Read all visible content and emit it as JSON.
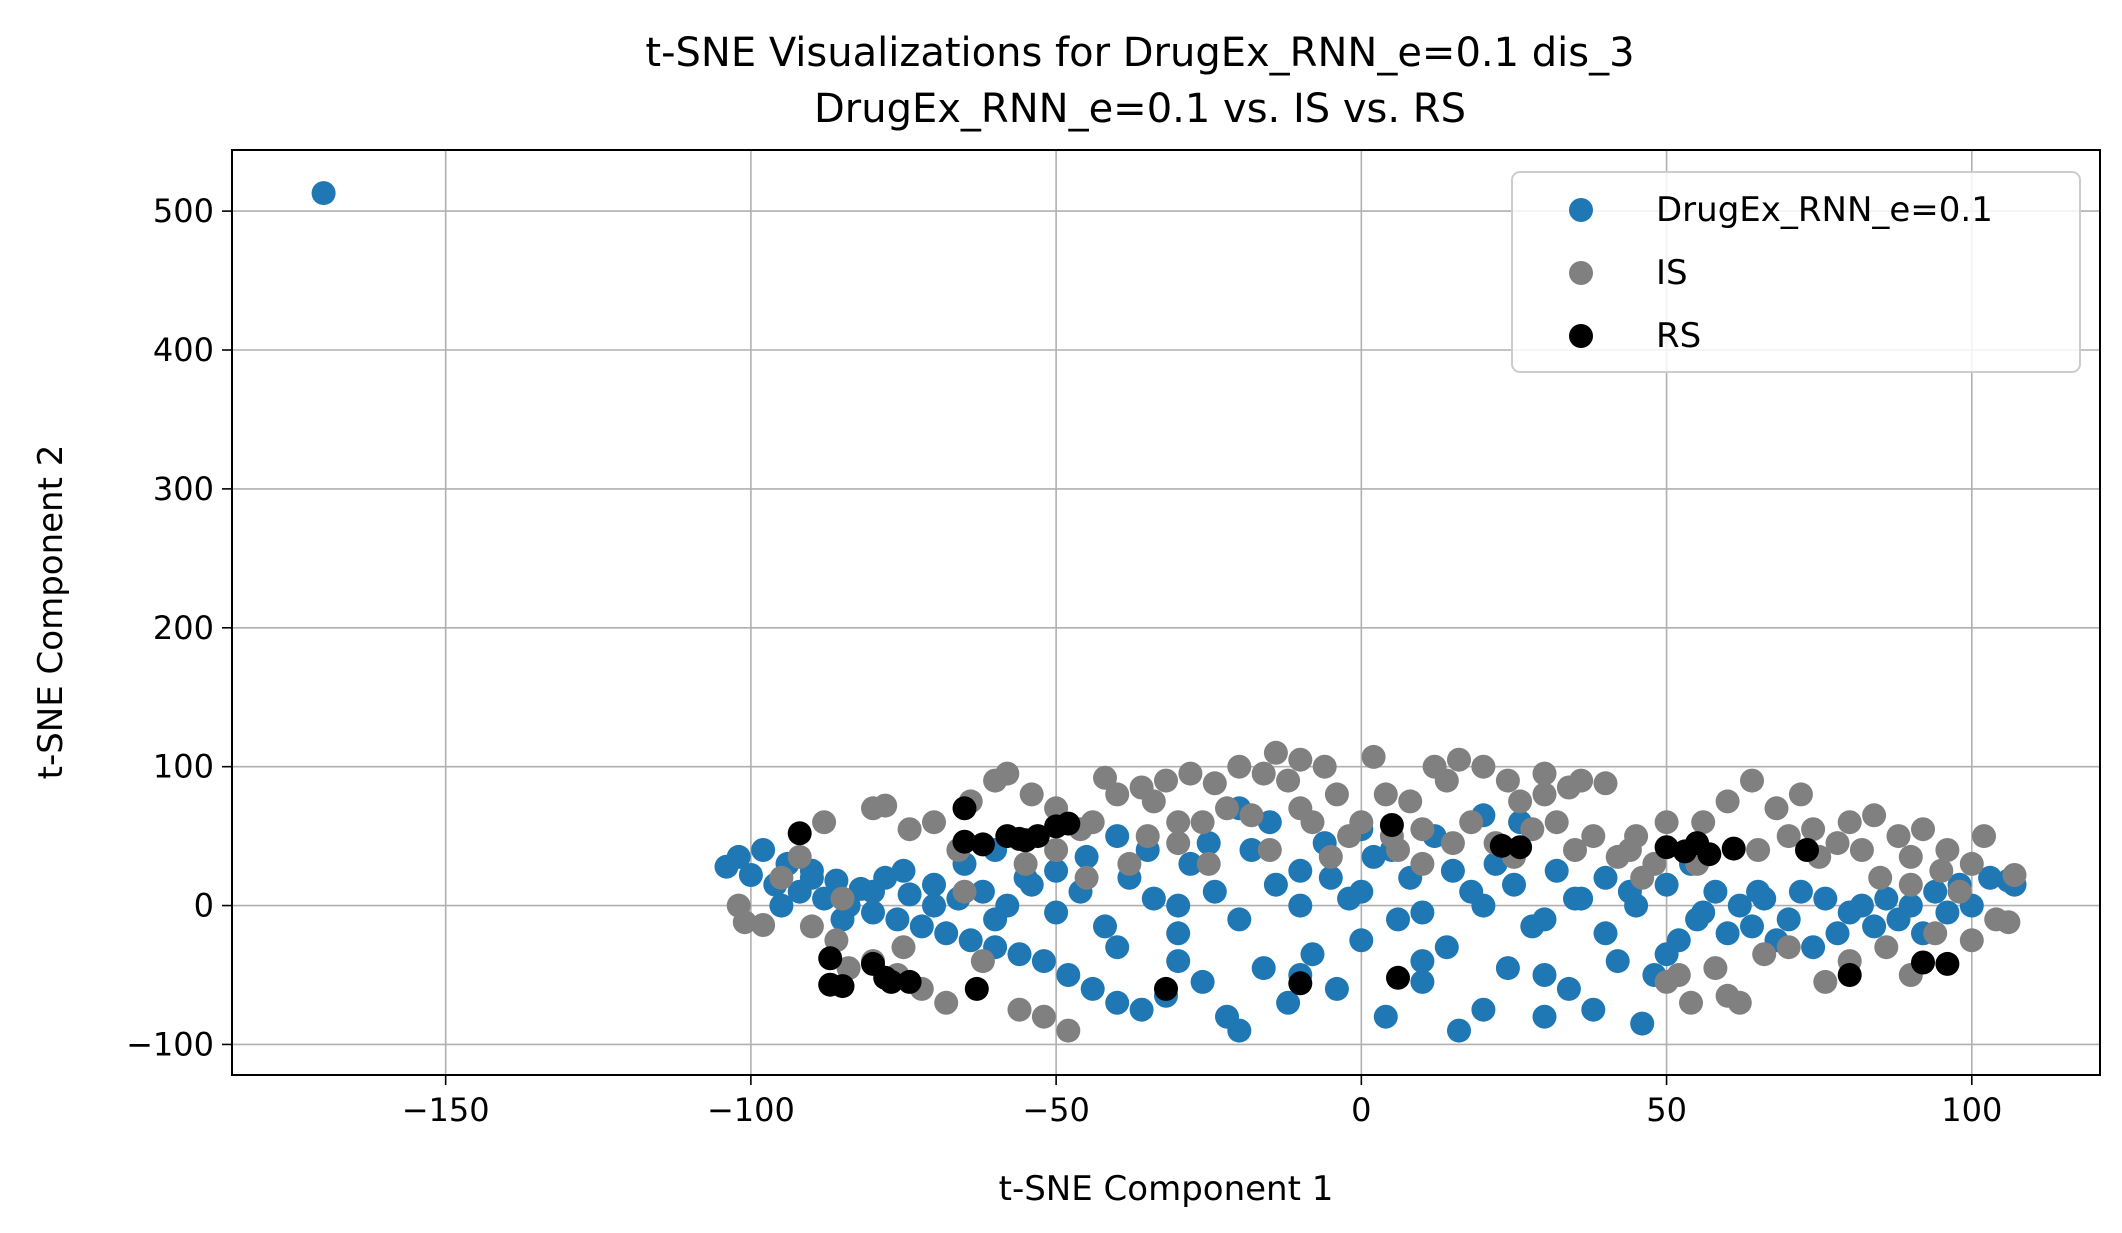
{
  "chart_data": {
    "type": "scatter",
    "title": "t-SNE Visualizations for DrugEx_RNN_e=0.1 dis_3",
    "subtitle": "DrugEx_RNN_e=0.1 vs. IS vs. RS",
    "xlabel": "t-SNE Component 1",
    "ylabel": "t-SNE Component 2",
    "xlim": [
      -185,
      121
    ],
    "ylim": [
      -122,
      544
    ],
    "xticks": [
      -150,
      -100,
      -50,
      0,
      50,
      100
    ],
    "yticks": [
      -100,
      0,
      100,
      200,
      300,
      400,
      500
    ],
    "xtick_labels": [
      "−150",
      "−100",
      "−50",
      "0",
      "50",
      "100"
    ],
    "ytick_labels": [
      "−100",
      "0",
      "100",
      "200",
      "300",
      "400",
      "500"
    ],
    "grid": true,
    "legend_position": "top-right",
    "series": [
      {
        "name": "DrugEx_RNN_e=0.1",
        "color": "#1f77b4",
        "points": [
          [
            -170,
            513
          ],
          [
            -104,
            28
          ],
          [
            -102,
            35
          ],
          [
            -100,
            22
          ],
          [
            -98,
            40
          ],
          [
            -96,
            15
          ],
          [
            -94,
            30
          ],
          [
            -92,
            10
          ],
          [
            -90,
            25
          ],
          [
            -88,
            5
          ],
          [
            -86,
            18
          ],
          [
            -84,
            0
          ],
          [
            -82,
            12
          ],
          [
            -80,
            -5
          ],
          [
            -78,
            20
          ],
          [
            -76,
            -10
          ],
          [
            -74,
            8
          ],
          [
            -72,
            -15
          ],
          [
            -70,
            15
          ],
          [
            -68,
            -20
          ],
          [
            -66,
            5
          ],
          [
            -64,
            -25
          ],
          [
            -62,
            10
          ],
          [
            -60,
            -30
          ],
          [
            -58,
            0
          ],
          [
            -56,
            -35
          ],
          [
            -54,
            15
          ],
          [
            -52,
            -40
          ],
          [
            -50,
            -5
          ],
          [
            -48,
            -50
          ],
          [
            -46,
            10
          ],
          [
            -44,
            -60
          ],
          [
            -42,
            -15
          ],
          [
            -40,
            -70
          ],
          [
            -38,
            20
          ],
          [
            -36,
            -75
          ],
          [
            -34,
            5
          ],
          [
            -32,
            -65
          ],
          [
            -30,
            -20
          ],
          [
            -28,
            30
          ],
          [
            -26,
            -55
          ],
          [
            -24,
            10
          ],
          [
            -22,
            -80
          ],
          [
            -20,
            -90
          ],
          [
            -18,
            40
          ],
          [
            -16,
            -45
          ],
          [
            -14,
            15
          ],
          [
            -12,
            -70
          ],
          [
            -10,
            25
          ],
          [
            -8,
            -35
          ],
          [
            -6,
            45
          ],
          [
            -4,
            -60
          ],
          [
            -2,
            5
          ],
          [
            0,
            -25
          ],
          [
            2,
            35
          ],
          [
            4,
            -80
          ],
          [
            6,
            -10
          ],
          [
            8,
            20
          ],
          [
            10,
            -55
          ],
          [
            12,
            50
          ],
          [
            14,
            -30
          ],
          [
            16,
            -90
          ],
          [
            18,
            10
          ],
          [
            20,
            -75
          ],
          [
            22,
            30
          ],
          [
            24,
            -45
          ],
          [
            26,
            60
          ],
          [
            28,
            -15
          ],
          [
            30,
            -80
          ],
          [
            32,
            25
          ],
          [
            34,
            -60
          ],
          [
            36,
            5
          ],
          [
            38,
            -75
          ],
          [
            40,
            20
          ],
          [
            42,
            -40
          ],
          [
            44,
            10
          ],
          [
            46,
            -85
          ],
          [
            48,
            -50
          ],
          [
            50,
            15
          ],
          [
            52,
            -25
          ],
          [
            54,
            30
          ],
          [
            56,
            -5
          ],
          [
            58,
            10
          ],
          [
            60,
            -20
          ],
          [
            62,
            0
          ],
          [
            64,
            -15
          ],
          [
            66,
            5
          ],
          [
            68,
            -25
          ],
          [
            70,
            -10
          ],
          [
            72,
            10
          ],
          [
            74,
            -30
          ],
          [
            76,
            5
          ],
          [
            78,
            -20
          ],
          [
            80,
            -5
          ],
          [
            82,
            0
          ],
          [
            84,
            -15
          ],
          [
            86,
            5
          ],
          [
            88,
            -10
          ],
          [
            90,
            0
          ],
          [
            92,
            -20
          ],
          [
            94,
            10
          ],
          [
            96,
            -5
          ],
          [
            98,
            15
          ],
          [
            100,
            0
          ],
          [
            103,
            20
          ],
          [
            106,
            18
          ],
          [
            107,
            15
          ],
          [
            -95,
            0
          ],
          [
            -85,
            -10
          ],
          [
            -75,
            25
          ],
          [
            -65,
            30
          ],
          [
            -55,
            20
          ],
          [
            -45,
            35
          ],
          [
            -35,
            40
          ],
          [
            -25,
            45
          ],
          [
            -15,
            60
          ],
          [
            -5,
            20
          ],
          [
            5,
            40
          ],
          [
            15,
            25
          ],
          [
            25,
            15
          ],
          [
            35,
            5
          ],
          [
            45,
            0
          ],
          [
            55,
            -10
          ],
          [
            65,
            10
          ],
          [
            -90,
            20
          ],
          [
            -80,
            10
          ],
          [
            -70,
            0
          ],
          [
            -60,
            -10
          ],
          [
            -50,
            25
          ],
          [
            -40,
            -30
          ],
          [
            -30,
            0
          ],
          [
            -20,
            -10
          ],
          [
            -10,
            0
          ],
          [
            0,
            10
          ],
          [
            10,
            -5
          ],
          [
            20,
            0
          ],
          [
            30,
            -10
          ],
          [
            40,
            -20
          ],
          [
            -60,
            40
          ],
          [
            -40,
            50
          ],
          [
            -20,
            70
          ],
          [
            0,
            55
          ],
          [
            20,
            65
          ],
          [
            -30,
            -40
          ],
          [
            -10,
            -50
          ],
          [
            10,
            -40
          ],
          [
            30,
            -50
          ],
          [
            50,
            -35
          ]
        ]
      },
      {
        "name": "IS",
        "color": "#808080",
        "points": [
          [
            -102,
            0
          ],
          [
            -101,
            -12
          ],
          [
            -98,
            -14
          ],
          [
            -95,
            20
          ],
          [
            -92,
            35
          ],
          [
            -90,
            -15
          ],
          [
            -88,
            60
          ],
          [
            -86,
            -25
          ],
          [
            -84,
            -45
          ],
          [
            -80,
            70
          ],
          [
            -78,
            72
          ],
          [
            -76,
            -50
          ],
          [
            -74,
            55
          ],
          [
            -72,
            -60
          ],
          [
            -70,
            60
          ],
          [
            -68,
            -70
          ],
          [
            -66,
            40
          ],
          [
            -64,
            75
          ],
          [
            -62,
            -40
          ],
          [
            -60,
            90
          ],
          [
            -58,
            95
          ],
          [
            -56,
            -75
          ],
          [
            -54,
            80
          ],
          [
            -52,
            -80
          ],
          [
            -50,
            70
          ],
          [
            -48,
            -90
          ],
          [
            -46,
            55
          ],
          [
            -44,
            60
          ],
          [
            -42,
            92
          ],
          [
            -40,
            80
          ],
          [
            -38,
            30
          ],
          [
            -36,
            85
          ],
          [
            -34,
            75
          ],
          [
            -32,
            90
          ],
          [
            -30,
            45
          ],
          [
            -28,
            95
          ],
          [
            -26,
            60
          ],
          [
            -24,
            88
          ],
          [
            -22,
            70
          ],
          [
            -20,
            100
          ],
          [
            -18,
            65
          ],
          [
            -16,
            95
          ],
          [
            -14,
            110
          ],
          [
            -12,
            90
          ],
          [
            -10,
            105
          ],
          [
            -8,
            60
          ],
          [
            -6,
            100
          ],
          [
            -4,
            80
          ],
          [
            -2,
            50
          ],
          [
            0,
            60
          ],
          [
            2,
            107
          ],
          [
            4,
            80
          ],
          [
            6,
            40
          ],
          [
            8,
            75
          ],
          [
            10,
            55
          ],
          [
            12,
            100
          ],
          [
            14,
            90
          ],
          [
            16,
            105
          ],
          [
            18,
            60
          ],
          [
            20,
            100
          ],
          [
            22,
            45
          ],
          [
            24,
            90
          ],
          [
            26,
            75
          ],
          [
            28,
            55
          ],
          [
            30,
            95
          ],
          [
            32,
            60
          ],
          [
            34,
            85
          ],
          [
            36,
            90
          ],
          [
            38,
            50
          ],
          [
            40,
            88
          ],
          [
            42,
            35
          ],
          [
            44,
            40
          ],
          [
            46,
            20
          ],
          [
            48,
            30
          ],
          [
            50,
            -55
          ],
          [
            52,
            -50
          ],
          [
            54,
            -70
          ],
          [
            56,
            60
          ],
          [
            58,
            -45
          ],
          [
            60,
            75
          ],
          [
            62,
            -70
          ],
          [
            64,
            90
          ],
          [
            66,
            -35
          ],
          [
            68,
            70
          ],
          [
            70,
            -30
          ],
          [
            72,
            80
          ],
          [
            74,
            55
          ],
          [
            76,
            -55
          ],
          [
            78,
            45
          ],
          [
            80,
            60
          ],
          [
            82,
            40
          ],
          [
            84,
            65
          ],
          [
            86,
            -30
          ],
          [
            88,
            50
          ],
          [
            90,
            15
          ],
          [
            92,
            55
          ],
          [
            94,
            -20
          ],
          [
            96,
            40
          ],
          [
            98,
            10
          ],
          [
            100,
            30
          ],
          [
            102,
            50
          ],
          [
            104,
            -10
          ],
          [
            106,
            -12
          ],
          [
            107,
            22
          ],
          [
            -85,
            5
          ],
          [
            -75,
            -30
          ],
          [
            -65,
            10
          ],
          [
            -55,
            30
          ],
          [
            -45,
            20
          ],
          [
            -35,
            50
          ],
          [
            -25,
            30
          ],
          [
            -15,
            40
          ],
          [
            -5,
            35
          ],
          [
            5,
            50
          ],
          [
            15,
            45
          ],
          [
            25,
            35
          ],
          [
            35,
            40
          ],
          [
            45,
            50
          ],
          [
            55,
            30
          ],
          [
            65,
            40
          ],
          [
            75,
            35
          ],
          [
            85,
            20
          ],
          [
            95,
            25
          ],
          [
            -50,
            40
          ],
          [
            -30,
            60
          ],
          [
            -10,
            70
          ],
          [
            10,
            30
          ],
          [
            30,
            80
          ],
          [
            50,
            60
          ],
          [
            70,
            50
          ],
          [
            90,
            35
          ],
          [
            -80,
            -40
          ],
          [
            60,
            -65
          ],
          [
            80,
            -40
          ],
          [
            90,
            -50
          ],
          [
            100,
            -25
          ]
        ]
      },
      {
        "name": "RS",
        "color": "#000000",
        "points": [
          [
            -92,
            52
          ],
          [
            -87,
            -38
          ],
          [
            -87,
            -57
          ],
          [
            -85,
            -58
          ],
          [
            -80,
            -42
          ],
          [
            -78,
            -52
          ],
          [
            -77,
            -55
          ],
          [
            -74,
            -55
          ],
          [
            -65,
            70
          ],
          [
            -65,
            46
          ],
          [
            -62,
            44
          ],
          [
            -63,
            -60
          ],
          [
            -58,
            50
          ],
          [
            -56,
            48
          ],
          [
            -55,
            47
          ],
          [
            -53,
            50
          ],
          [
            -50,
            57
          ],
          [
            -48,
            59
          ],
          [
            -32,
            -60
          ],
          [
            -10,
            -56
          ],
          [
            5,
            58
          ],
          [
            6,
            -52
          ],
          [
            23,
            43
          ],
          [
            26,
            42
          ],
          [
            50,
            42
          ],
          [
            53,
            39
          ],
          [
            55,
            45
          ],
          [
            57,
            37
          ],
          [
            61,
            41
          ],
          [
            73,
            40
          ],
          [
            80,
            -50
          ],
          [
            92,
            -41
          ],
          [
            96,
            -42
          ]
        ]
      }
    ]
  }
}
